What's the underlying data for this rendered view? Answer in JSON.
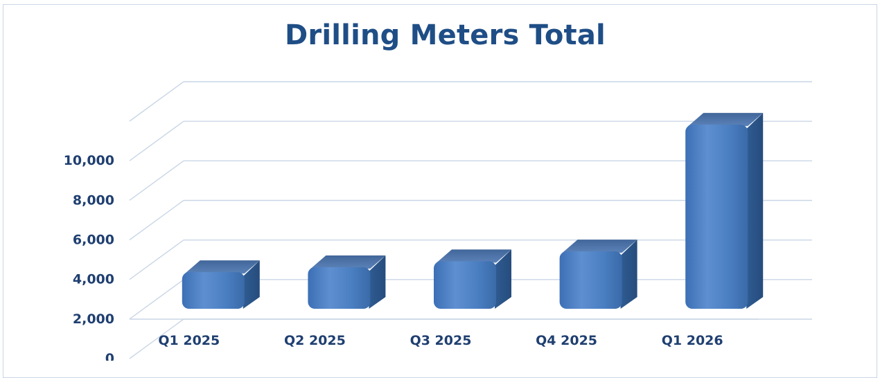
{
  "chart_data": {
    "type": "bar",
    "title": "Drilling Meters Total",
    "categories": [
      "Q1 2025",
      "Q2 2025",
      "Q3 2025",
      "Q4 2025",
      "Q1 2026"
    ],
    "series": [
      {
        "values": [
          1850,
          2100,
          2400,
          2900,
          9300
        ]
      }
    ],
    "y_ticks": [
      "0",
      "2,000",
      "4,000",
      "6,000",
      "8,000",
      "10,000"
    ],
    "ylim": [
      0,
      12000
    ],
    "grid": true,
    "style": "3d-bar",
    "colors": {
      "bar": "#4a7fc2",
      "bar_top": "#5a7fb0",
      "bar_side": "#2e5a8f",
      "title": "#1f4e86",
      "labels": "#1f3f70",
      "grid": "#c9d6e6"
    }
  }
}
